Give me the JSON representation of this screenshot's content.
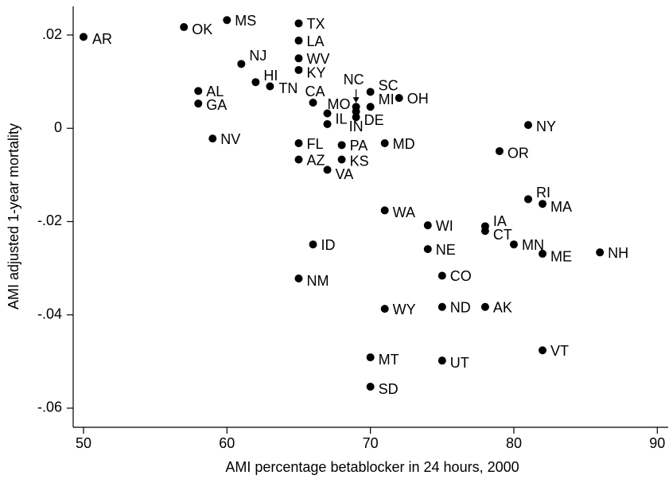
{
  "chart_data": {
    "type": "scatter",
    "x_label": "AMI percentage betablocker in 24 hours, 2000",
    "y_label": "AMI adjusted 1-year mortality",
    "color": "#000000",
    "labels": [
      "AR",
      "OK",
      "MS",
      "TX",
      "LA",
      "WV",
      "KY",
      "NJ",
      "HI",
      "TN",
      "AL",
      "GA",
      "CA",
      "MO",
      "IL",
      "NC",
      "IN",
      "DE",
      "SC",
      "MI",
      "OH",
      "NV",
      "FL",
      "AZ",
      "VA",
      "PA",
      "KS",
      "MD",
      "NY",
      "OR",
      "RI",
      "MA",
      "WA",
      "WI",
      "IA",
      "CT",
      "MN",
      "ME",
      "NH",
      "ID",
      "NE",
      "CO",
      "NM",
      "WY",
      "ND",
      "AK",
      "VT",
      "MT",
      "UT",
      "SD"
    ],
    "x": [
      50,
      57,
      60,
      65,
      65,
      65,
      65,
      61,
      62,
      63,
      58,
      58,
      66,
      67,
      67,
      69,
      69,
      69,
      70,
      70,
      72,
      59,
      65,
      65,
      67,
      68,
      68,
      71,
      81,
      79,
      81,
      82,
      71,
      74,
      78,
      78,
      80,
      82,
      86,
      66,
      74,
      75,
      65,
      71,
      75,
      78,
      82,
      70,
      75,
      70
    ],
    "y": [
      0.0196,
      0.0217,
      0.0232,
      0.0225,
      0.0188,
      0.015,
      0.0125,
      0.0138,
      0.0099,
      0.009,
      0.008,
      0.0053,
      0.0055,
      0.0032,
      0.0009,
      0.0046,
      0.0036,
      0.0024,
      0.0078,
      0.0046,
      0.0065,
      -0.0022,
      -0.0032,
      -0.0067,
      -0.0089,
      -0.0036,
      -0.0067,
      -0.0032,
      0.0007,
      -0.0049,
      -0.0152,
      -0.0162,
      -0.0176,
      -0.0208,
      -0.021,
      -0.022,
      -0.0249,
      -0.0269,
      -0.0266,
      -0.0249,
      -0.0259,
      -0.0316,
      -0.0322,
      -0.0387,
      -0.0383,
      -0.0383,
      -0.0476,
      -0.0491,
      -0.0498,
      -0.0554
    ],
    "xlim": [
      49.28,
      90.76
    ],
    "ylim": [
      -0.0641,
      0.0258
    ],
    "xticks": [
      50,
      60,
      70,
      80,
      90
    ],
    "yticks": [
      {
        "value": 0.02,
        "label": ".02"
      },
      0,
      {
        "value": -0.02,
        "label": "-.02"
      },
      {
        "value": -0.04,
        "label": "-.04"
      },
      {
        "value": -0.06,
        "label": "-.06"
      }
    ]
  }
}
